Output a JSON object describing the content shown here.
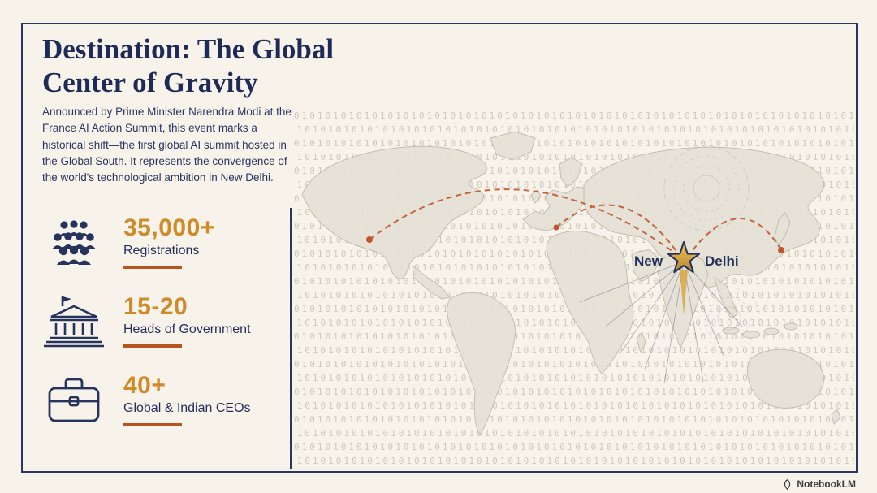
{
  "header": {
    "title_line1": "Destination: The Global",
    "title_line2": "Center of Gravity",
    "description": "Announced by Prime Minister Narendra Modi at the France AI Action Summit, this event marks a historical shift—the first global AI summit hosted in the Global South. It represents the convergence of the world's technological ambition in New Delhi."
  },
  "stats": [
    {
      "value": "35,000+",
      "label": "Registrations",
      "icon": "crowd-icon"
    },
    {
      "value": "15-20",
      "label": "Heads of Government",
      "icon": "government-building-icon"
    },
    {
      "value": "40+",
      "label": "Global & Indian CEOs",
      "icon": "briefcase-icon"
    }
  ],
  "map": {
    "destination": {
      "label_left": "New",
      "label_right": "Delhi"
    },
    "binary_pattern": "01010101010101010101"
  },
  "branding": {
    "logo_text": "NotebookLM",
    "logo_icon": "notebooklm-logo-icon"
  },
  "colors": {
    "background": "#f7f3ea",
    "navy": "#232f5c",
    "accent_gold": "#cf8a2a",
    "accent_rust": "#b5541e",
    "arc_orange": "#c2552b",
    "map_land": "#e4e1d5",
    "binary_text": "#a39f92"
  }
}
